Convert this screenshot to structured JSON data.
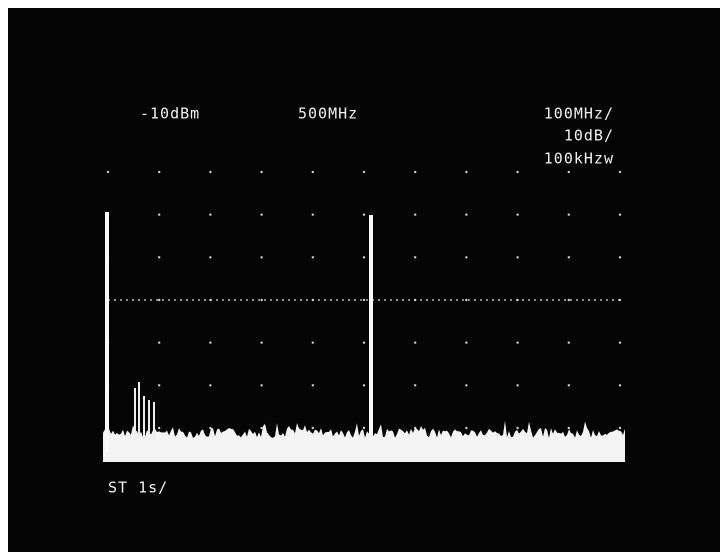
{
  "display": {
    "reference_level": "-10dBm",
    "center_frequency": "500MHz",
    "span_per_div": "100MHz/",
    "scale_per_div": "10dB/",
    "resolution_bandwidth": "100kHzw",
    "sweep_time": "ST 1s/"
  }
}
